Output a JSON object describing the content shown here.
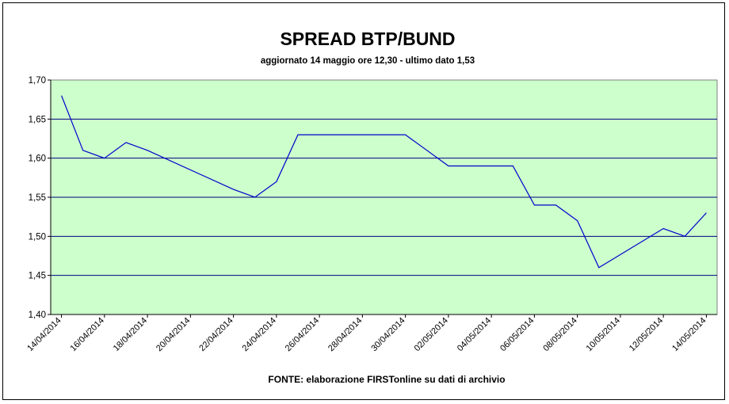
{
  "chart_data": {
    "type": "line",
    "title": "SPREAD BTP/BUND",
    "subtitle": "aggiornato 14 maggio ore 12,30 - ultimo dato 1,53",
    "source": "FONTE:  elaborazione FIRSTonline su dati di archivio",
    "xlabel": "",
    "ylabel": "",
    "ylim": [
      1.4,
      1.7
    ],
    "y_ticks": [
      "1,70",
      "1,65",
      "1,60",
      "1,55",
      "1,50",
      "1,45",
      "1,40"
    ],
    "x_ticks": [
      "14/04/2014",
      "16/04/2014",
      "18/04/2014",
      "20/04/2014",
      "22/04/2014",
      "24/04/2014",
      "26/04/2014",
      "28/04/2014",
      "30/04/2014",
      "02/05/2014",
      "04/05/2014",
      "06/05/2014",
      "08/05/2014",
      "10/05/2014",
      "12/05/2014",
      "14/05/2014"
    ],
    "xlim": [
      "14/04/2014",
      "14/05/2014"
    ],
    "grid": true,
    "legend": "none",
    "plot_background": "#ccffcc",
    "line_color": "#0000cc",
    "grid_color": "#000080",
    "series": [
      {
        "x": [
          "14/04/2014",
          "15/04/2014",
          "16/04/2014",
          "17/04/2014",
          "18/04/2014",
          "22/04/2014",
          "23/04/2014",
          "24/04/2014",
          "25/04/2014",
          "30/04/2014",
          "01/05/2014",
          "02/05/2014",
          "05/05/2014",
          "06/05/2014",
          "07/05/2014",
          "08/05/2014",
          "09/05/2014",
          "12/05/2014",
          "13/05/2014",
          "14/05/2014"
        ],
        "values": [
          1.68,
          1.61,
          1.6,
          1.62,
          1.61,
          1.56,
          1.55,
          1.57,
          1.63,
          1.63,
          1.61,
          1.59,
          1.59,
          1.54,
          1.54,
          1.52,
          1.46,
          1.51,
          1.5,
          1.53
        ]
      }
    ]
  }
}
